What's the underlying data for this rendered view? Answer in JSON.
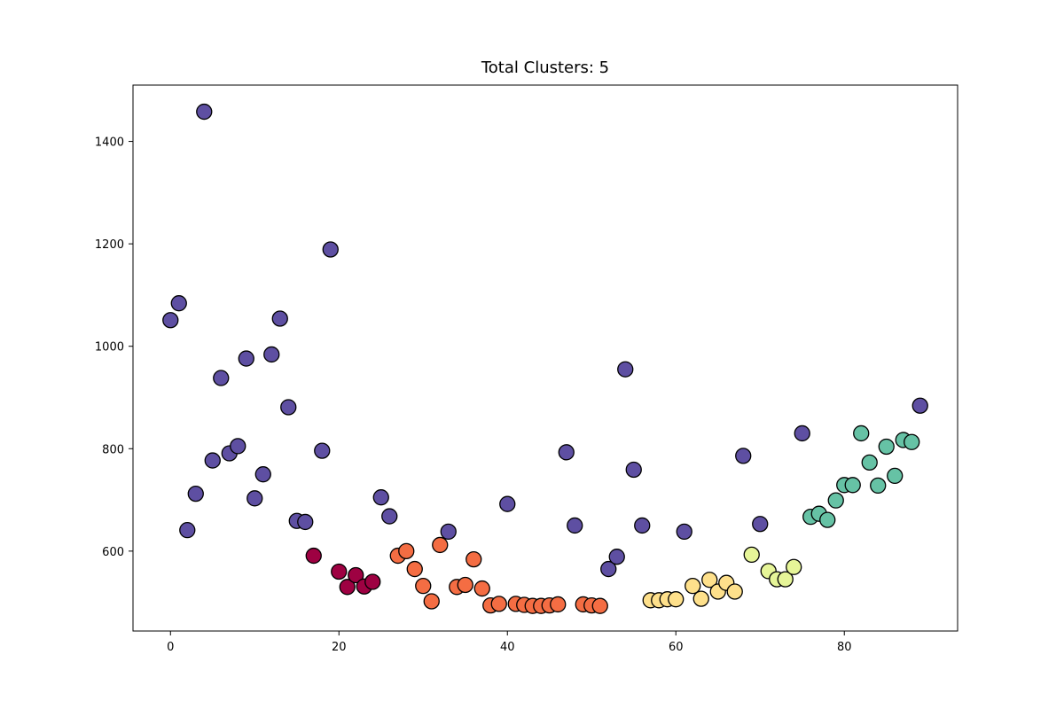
{
  "chart_data": {
    "type": "scatter",
    "title": "Total Clusters: 5",
    "xlabel": "",
    "ylabel": "",
    "xlim": [
      -4.45,
      93.45
    ],
    "ylim": [
      444,
      1510
    ],
    "xticks": [
      0,
      20,
      40,
      60,
      80
    ],
    "yticks": [
      600,
      800,
      1000,
      1200,
      1400
    ],
    "grid": false,
    "legend": "none",
    "marker_edge_color": "#000000",
    "cluster_colors": [
      "#9e0142",
      "#f46d43",
      "#fee08b",
      "#e6f598",
      "#66c2a5",
      "#5e4fa2"
    ],
    "x": [
      0,
      1,
      2,
      3,
      4,
      5,
      6,
      7,
      8,
      9,
      10,
      11,
      12,
      13,
      14,
      15,
      16,
      17,
      18,
      19,
      20,
      21,
      22,
      23,
      24,
      25,
      26,
      27,
      28,
      29,
      30,
      31,
      32,
      33,
      34,
      35,
      36,
      37,
      38,
      39,
      40,
      41,
      42,
      43,
      44,
      45,
      46,
      47,
      48,
      49,
      50,
      51,
      52,
      53,
      54,
      55,
      56,
      57,
      58,
      59,
      60,
      61,
      62,
      63,
      64,
      65,
      66,
      67,
      68,
      69,
      70,
      71,
      72,
      73,
      74,
      75,
      76,
      77,
      78,
      79,
      80,
      81,
      82,
      83,
      84,
      85,
      86,
      87,
      88,
      89
    ],
    "y": [
      1051,
      1084,
      641,
      712,
      1458,
      777,
      938,
      791,
      805,
      976,
      703,
      750,
      984,
      1054,
      881,
      659,
      657,
      591,
      796,
      1189,
      560,
      530,
      553,
      531,
      540,
      705,
      668,
      591,
      600,
      565,
      532,
      502,
      612,
      638,
      530,
      534,
      584,
      527,
      494,
      497,
      692,
      497,
      495,
      493,
      493,
      494,
      496,
      793,
      650,
      496,
      494,
      493,
      565,
      589,
      955,
      759,
      650,
      504,
      504,
      506,
      506,
      638,
      532,
      507,
      544,
      521,
      538,
      521,
      786,
      593,
      653,
      561,
      545,
      545,
      569,
      830,
      667,
      673,
      661,
      699,
      729,
      729,
      830,
      773,
      728,
      804,
      747,
      817,
      813,
      884
    ],
    "cluster": [
      5,
      5,
      5,
      5,
      5,
      5,
      5,
      5,
      5,
      5,
      5,
      5,
      5,
      5,
      5,
      5,
      5,
      0,
      5,
      5,
      0,
      0,
      0,
      0,
      0,
      5,
      5,
      1,
      1,
      1,
      1,
      1,
      1,
      5,
      1,
      1,
      1,
      1,
      1,
      1,
      5,
      1,
      1,
      1,
      1,
      1,
      1,
      5,
      5,
      1,
      1,
      1,
      5,
      5,
      5,
      5,
      5,
      2,
      2,
      2,
      2,
      5,
      2,
      2,
      2,
      2,
      2,
      2,
      5,
      3,
      5,
      3,
      3,
      3,
      3,
      5,
      4,
      4,
      4,
      4,
      4,
      4,
      4,
      4,
      4,
      4,
      4,
      4,
      4,
      5
    ]
  }
}
